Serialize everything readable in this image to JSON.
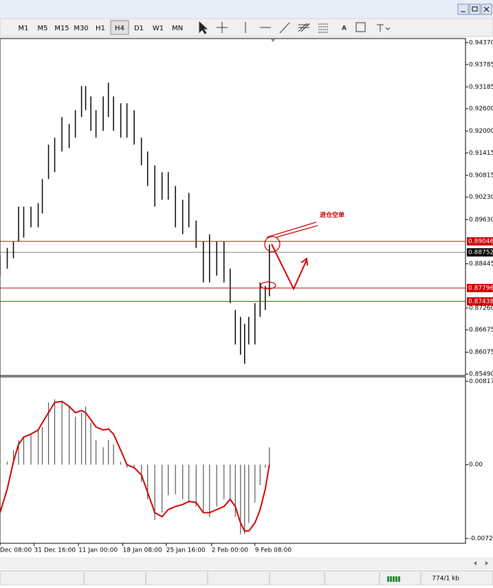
{
  "toolbar": {
    "timeframes": [
      "M1",
      "M5",
      "M15",
      "M30",
      "H1",
      "H4",
      "D1",
      "W1",
      "MN"
    ],
    "active": "H4"
  },
  "chart_data": [
    {
      "type": "ohlc",
      "color": "#000000",
      "x": [
        0,
        7,
        13,
        18,
        23,
        30,
        37,
        41,
        47,
        53,
        60,
        67,
        73,
        79,
        83,
        88,
        93,
        100,
        105,
        110,
        117,
        123,
        130,
        137,
        143,
        150,
        157,
        163,
        170,
        177,
        183,
        190,
        197,
        203,
        210,
        217,
        223,
        228,
        233,
        237,
        241,
        247,
        252,
        257,
        261
      ],
      "high": [
        0.88684,
        0.88869,
        0.89054,
        0.89977,
        0.89977,
        0.89977,
        0.90069,
        0.90715,
        0.91638,
        0.91823,
        0.92376,
        0.92192,
        0.92561,
        0.93207,
        0.93207,
        0.9293,
        0.92561,
        0.9293,
        0.93299,
        0.9293,
        0.92746,
        0.92746,
        0.92561,
        0.91823,
        0.91453,
        0.91084,
        0.909,
        0.909,
        0.9053,
        0.90161,
        0.90346,
        0.89607,
        0.89054,
        0.89238,
        0.89054,
        0.89054,
        0.88315,
        0.87208,
        0.87023,
        0.86838,
        0.87023,
        0.87392,
        0.87946,
        0.87854,
        0.88961
      ],
      "low": [
        0.8813,
        0.88315,
        0.88592,
        0.89054,
        0.89146,
        0.89423,
        0.89423,
        0.89792,
        0.90715,
        0.909,
        0.91453,
        0.91546,
        0.91823,
        0.92376,
        0.92561,
        0.92007,
        0.91823,
        0.92007,
        0.92376,
        0.92007,
        0.91823,
        0.91823,
        0.91638,
        0.91084,
        0.9053,
        0.89977,
        0.90161,
        0.90161,
        0.89423,
        0.89238,
        0.89423,
        0.88869,
        0.87946,
        0.87946,
        0.8813,
        0.87946,
        0.87392,
        0.86285,
        0.86008,
        0.85768,
        0.86285,
        0.86285,
        0.87023,
        0.87208,
        0.87577
      ],
      "xlim": [
        0,
        451
      ],
      "ylim": [
        0.85453,
        0.94481
      ],
      "yticks": [
        {
          "value": 0.9437,
          "label": "0.94370"
        },
        0.93785,
        0.93185,
        {
          "value": 0.926,
          "label": "0.92600"
        },
        {
          "value": 0.92,
          "label": "0.92000"
        },
        0.91415,
        0.90815,
        {
          "value": 0.9023,
          "label": "0.90230"
        },
        {
          "value": 0.8963,
          "label": "0.89630"
        },
        0.88445,
        {
          "value": 0.8726,
          "label": "0.87260"
        },
        0.86675,
        0.86075,
        {
          "value": 0.8549,
          "label": "0.85490"
        }
      ],
      "levels": [
        {
          "value": 0.89046,
          "color": "#cc0000"
        },
        {
          "value": 0.88752,
          "color": "#000000"
        },
        {
          "value": 0.87796,
          "color": "#cc0000"
        },
        {
          "value": 0.87438,
          "color": "#cc0000"
        }
      ],
      "annotation": "进仓空单"
    },
    {
      "type": "macd",
      "color": "#555555",
      "signal_color": "#cc0000",
      "x": [
        0,
        7,
        13,
        18,
        23,
        30,
        37,
        41,
        47,
        53,
        60,
        67,
        73,
        79,
        83,
        88,
        93,
        100,
        105,
        110,
        117,
        123,
        130,
        137,
        143,
        150,
        157,
        163,
        170,
        177,
        183,
        190,
        197,
        203,
        210,
        217,
        223,
        228,
        233,
        237,
        241,
        247,
        252,
        257,
        261
      ],
      "values": [
        -0.0003,
        0.0003,
        0.0014,
        0.0024,
        0.0027,
        0.003,
        0.0034,
        0.0037,
        0.0061,
        0.0064,
        0.0061,
        0.0057,
        0.0047,
        0.0051,
        0.0057,
        0.0041,
        0.0024,
        0.0017,
        0.0024,
        0.002,
        0.0003,
        -0.0003,
        -0.0003,
        -0.0017,
        -0.0034,
        -0.0054,
        -0.0047,
        -0.003,
        -0.0029,
        -0.0034,
        -0.0037,
        -0.0041,
        -0.0047,
        -0.0051,
        -0.0041,
        -0.0034,
        -0.0034,
        -0.0051,
        -0.0068,
        -0.0068,
        -0.0057,
        -0.0037,
        -0.002,
        -0.0003,
        0.0017
      ],
      "signal": [
        -0.0047,
        -0.0024,
        0.0003,
        0.002,
        0.0027,
        0.003,
        0.0034,
        0.0041,
        0.0051,
        0.0061,
        0.0062,
        0.0057,
        0.0051,
        0.0053,
        0.0051,
        0.0044,
        0.0037,
        0.0034,
        0.0035,
        0.003,
        0.0014,
        0,
        -0.0003,
        -0.001,
        -0.0027,
        -0.0047,
        -0.0051,
        -0.0044,
        -0.0041,
        -0.0039,
        -0.0036,
        -0.0037,
        -0.0047,
        -0.0047,
        -0.0044,
        -0.0041,
        -0.0034,
        -0.0041,
        -0.0057,
        -0.0065,
        -0.0065,
        -0.0057,
        -0.0044,
        -0.0024,
        0
      ],
      "xlim": [
        0,
        451
      ],
      "ylim": [
        -0.0077,
        0.0086
      ],
      "yticks": [
        0.008171,
        {
          "value": 0,
          "label": "0.00"
        },
        -0.00722
      ],
      "xticks": [
        {
          "value": 0,
          "label": "Dec 08:00"
        },
        {
          "value": 33,
          "label": "31 Dec 16:00"
        },
        {
          "value": 76,
          "label": "11 Jan 00:00"
        },
        {
          "value": 119,
          "label": "18 Jan 08:00"
        },
        {
          "value": 161,
          "label": "25 Jan 16:00"
        },
        {
          "value": 205,
          "label": "2 Feb 00:00"
        },
        {
          "value": 247,
          "label": "9 Feb 08:00"
        }
      ]
    }
  ],
  "status": "774/1 kb"
}
